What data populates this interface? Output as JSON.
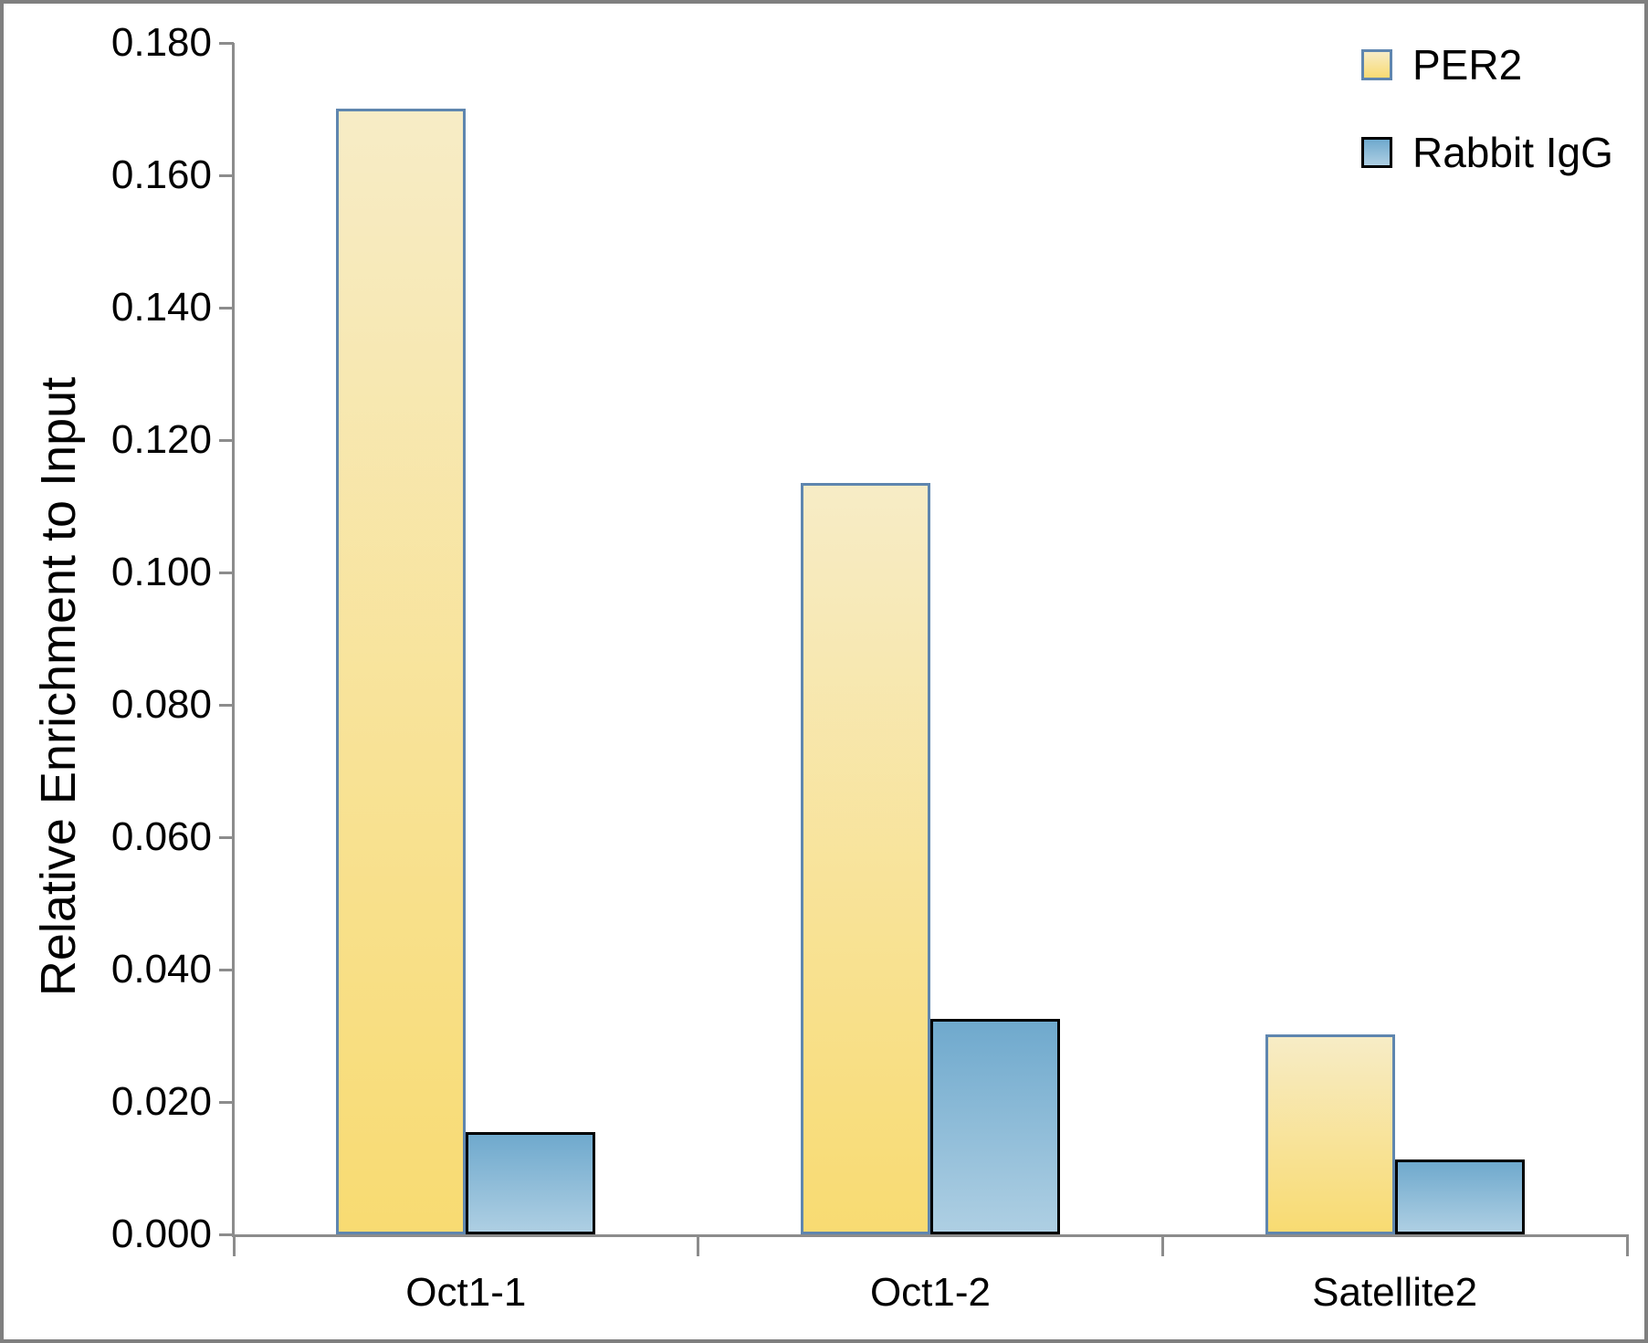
{
  "figure": {
    "background_color": "#FFFFFF",
    "frame_color": "#7F7F7F",
    "axis_color": "#8C8C8C",
    "text_color": "#000000"
  },
  "chart_data": {
    "type": "bar",
    "title": "",
    "xlabel": "",
    "ylabel": "Relative Enrichment to Input",
    "categories": [
      "Oct1-1",
      "Oct1-2",
      "Satellite2"
    ],
    "series": [
      {
        "name": "PER2",
        "values": [
          0.17,
          0.1135,
          0.0302
        ],
        "fill_top": "#F7ECC6",
        "fill_bottom": "#F8DB72",
        "border_color": "#5F86AF"
      },
      {
        "name": "Rabbit IgG",
        "values": [
          0.0155,
          0.0325,
          0.0113
        ],
        "fill_top": "#6FA9CD",
        "fill_bottom": "#AECFE3",
        "border_color": "#000000"
      }
    ],
    "ylim": [
      0.0,
      0.18
    ],
    "ytick_step": 0.02,
    "ytick_format_decimals": 3,
    "ytick_labels": [
      "0.000",
      "0.020",
      "0.040",
      "0.060",
      "0.080",
      "0.100",
      "0.120",
      "0.140",
      "0.160",
      "0.180"
    ],
    "grid": false,
    "legend_position": "top-right"
  }
}
